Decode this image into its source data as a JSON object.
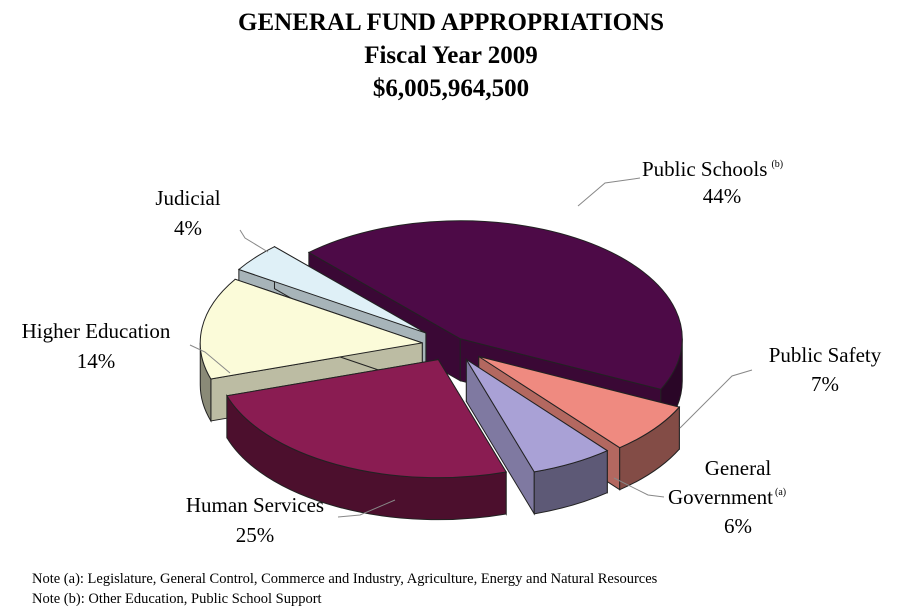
{
  "title": {
    "line1": "GENERAL FUND APPROPRIATIONS",
    "line2": "Fiscal Year 2009",
    "line3": "$6,005,964,500"
  },
  "chart_data": {
    "type": "pie",
    "slices": [
      {
        "label": "Public Schools",
        "marker": "(b)",
        "value": 44,
        "display": "44%",
        "color": "#4d0a47"
      },
      {
        "label": "Public Safety",
        "marker": "",
        "value": 7,
        "display": "7%",
        "color": "#ef8a80"
      },
      {
        "label": "General Government",
        "marker": "(a)",
        "value": 6,
        "display": "6%",
        "color": "#a9a1d6"
      },
      {
        "label": "Human Services",
        "marker": "",
        "value": 25,
        "display": "25%",
        "color": "#8a1c52"
      },
      {
        "label": "Higher Education",
        "marker": "",
        "value": 14,
        "display": "14%",
        "color": "#fbfbd9"
      },
      {
        "label": "Judicial",
        "marker": "",
        "value": 4,
        "display": "4%",
        "color": "#dff0f7"
      }
    ],
    "label_text": {
      "public_schools": "Public Schools",
      "public_safety": "Public Safety",
      "general_1": "General",
      "general_2": "Government",
      "human_services": "Human Services",
      "higher_education": "Higher Education",
      "judicial": "Judicial"
    }
  },
  "notes": [
    "Note (a):  Legislature, General Control, Commerce and Industry, Agriculture, Energy and Natural Resources",
    "Note (b):  Other Education, Public School Support"
  ]
}
